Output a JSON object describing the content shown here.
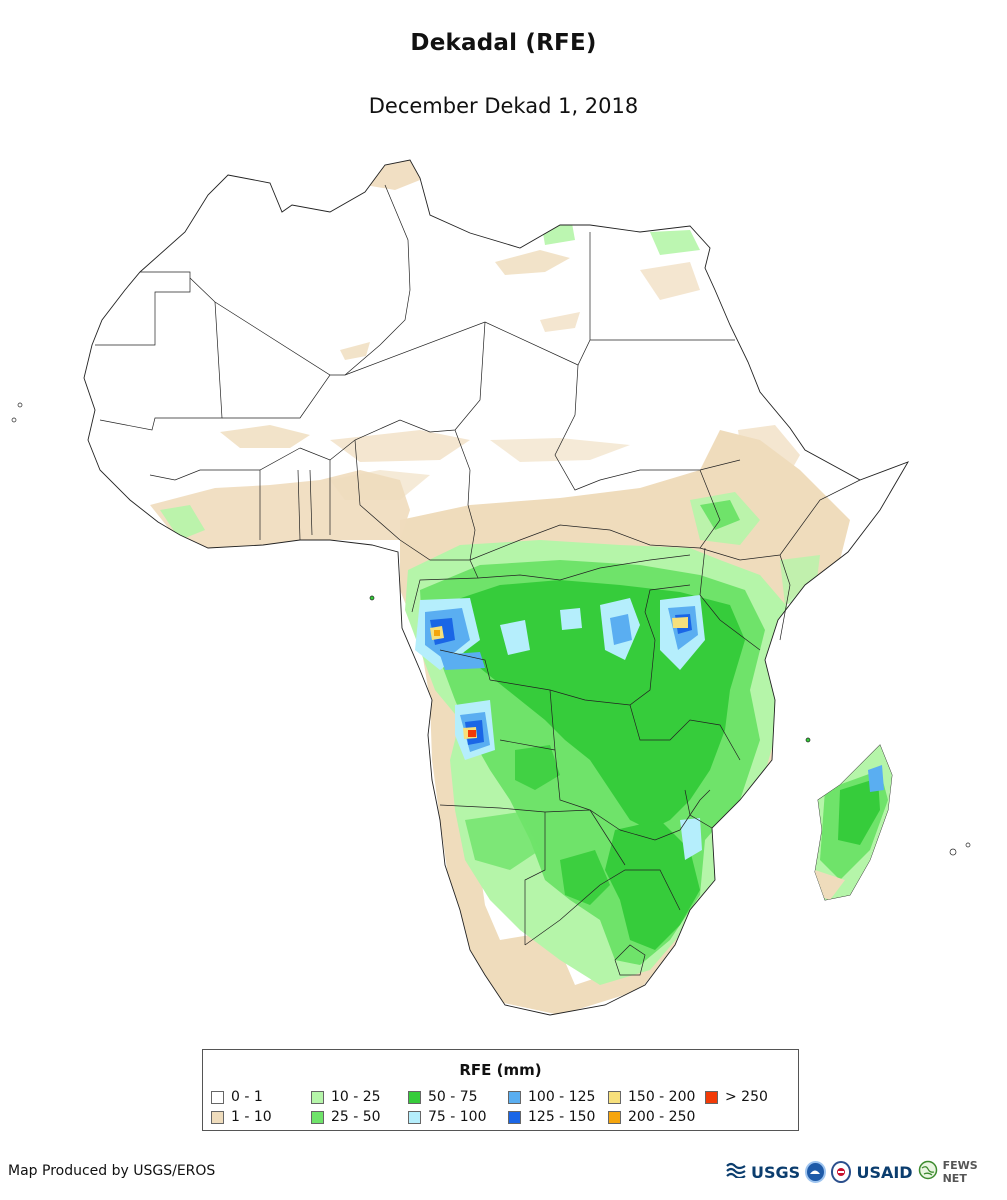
{
  "title": "Dekadal (RFE)",
  "subtitle": "December Dekad 1, 2018",
  "legend": {
    "title": "RFE (mm)",
    "classes": [
      {
        "label": "0 - 1",
        "color": "#ffffff"
      },
      {
        "label": "1 - 10",
        "color": "#efdcbc"
      },
      {
        "label": "10 - 25",
        "color": "#b5f5a9"
      },
      {
        "label": "25 - 50",
        "color": "#6fe36a"
      },
      {
        "label": "50 - 75",
        "color": "#36cc3b"
      },
      {
        "label": "75 - 100",
        "color": "#b5eefc"
      },
      {
        "label": "100 - 125",
        "color": "#5aaef1"
      },
      {
        "label": "125 - 150",
        "color": "#1a66e6"
      },
      {
        "label": "150 - 200",
        "color": "#f7e07c"
      },
      {
        "label": "200 - 250",
        "color": "#f5a50d"
      },
      {
        "label": "> 250",
        "color": "#f23a06"
      }
    ]
  },
  "credit": "Map Produced by USGS/EROS",
  "logos": {
    "usgs": "USGS",
    "noaa_icon": "noaa-seal-icon",
    "usaid_icon": "usaid-seal-icon",
    "usaid": "USAID",
    "fewsnet_icon": "globe-icon",
    "fewsnet": "FEWS NET"
  }
}
